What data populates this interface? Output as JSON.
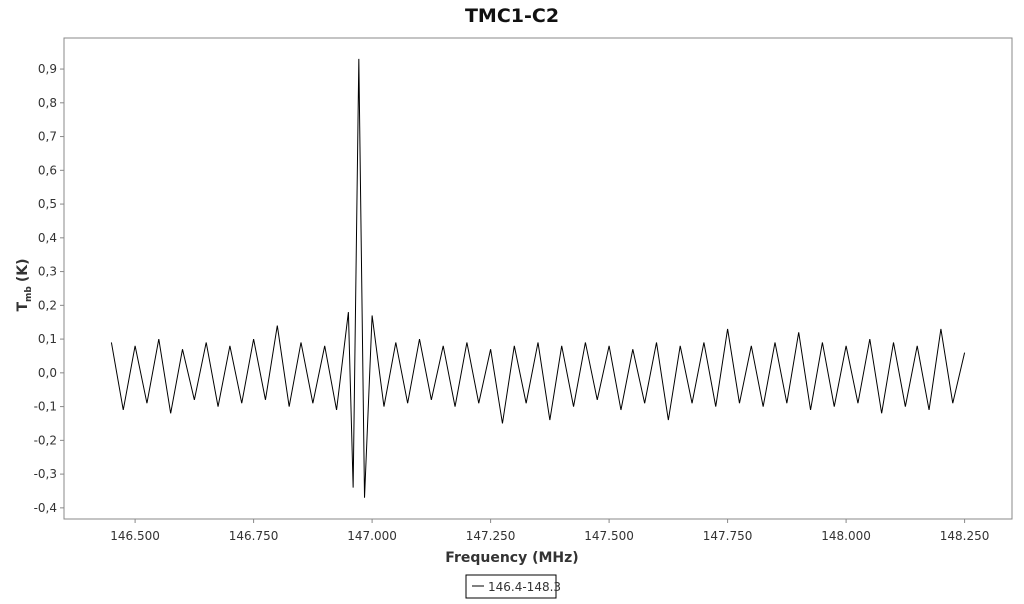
{
  "chart_data": {
    "type": "line",
    "title": "TMC1-C2",
    "xlabel": "Frequency (MHz)",
    "ylabel": {
      "main": "T",
      "sub": "mb",
      "unit": "(K)"
    },
    "xlim": [
      146.35,
      148.35
    ],
    "ylim": [
      -0.433,
      0.992
    ],
    "xticks": [
      {
        "value": 146.5,
        "label": "146.500"
      },
      {
        "value": 146.75,
        "label": "146.750"
      },
      {
        "value": 147.0,
        "label": "147.000"
      },
      {
        "value": 147.25,
        "label": "147.250"
      },
      {
        "value": 147.5,
        "label": "147.500"
      },
      {
        "value": 147.75,
        "label": "147.750"
      },
      {
        "value": 148.0,
        "label": "148.000"
      },
      {
        "value": 148.25,
        "label": "148.250"
      }
    ],
    "yticks": [
      {
        "value": -0.4,
        "label": "-0,4"
      },
      {
        "value": -0.3,
        "label": "-0,3"
      },
      {
        "value": -0.2,
        "label": "-0,2"
      },
      {
        "value": -0.1,
        "label": "-0,1"
      },
      {
        "value": 0,
        "label": "0,0"
      },
      {
        "value": 0.1,
        "label": "0,1"
      },
      {
        "value": 0.2,
        "label": "0,2"
      },
      {
        "value": 0.3,
        "label": "0,3"
      },
      {
        "value": 0.4,
        "label": "0,4"
      },
      {
        "value": 0.5,
        "label": "0,5"
      },
      {
        "value": 0.6,
        "label": "0,6"
      },
      {
        "value": 0.7,
        "label": "0,7"
      },
      {
        "value": 0.8,
        "label": "0,8"
      },
      {
        "value": 0.9,
        "label": "0,9"
      }
    ],
    "x": [
      146.45,
      146.475,
      146.5,
      146.525,
      146.55,
      146.575,
      146.6,
      146.625,
      146.65,
      146.675,
      146.7,
      146.725,
      146.75,
      146.775,
      146.8,
      146.825,
      146.85,
      146.875,
      146.9,
      146.925,
      146.95,
      146.96,
      146.972,
      146.984,
      147.0,
      147.025,
      147.05,
      147.075,
      147.1,
      147.125,
      147.15,
      147.175,
      147.2,
      147.225,
      147.25,
      147.275,
      147.3,
      147.325,
      147.35,
      147.375,
      147.4,
      147.425,
      147.45,
      147.475,
      147.5,
      147.525,
      147.55,
      147.575,
      147.6,
      147.625,
      147.65,
      147.675,
      147.7,
      147.725,
      147.75,
      147.775,
      147.8,
      147.825,
      147.85,
      147.875,
      147.9,
      147.925,
      147.95,
      147.975,
      148.0,
      148.025,
      148.05,
      148.075,
      148.1,
      148.125,
      148.15,
      148.175,
      148.2,
      148.225,
      148.25
    ],
    "series": [
      {
        "name": "146.4-148.3",
        "color": "#000000",
        "values": [
          0.09,
          -0.11,
          0.08,
          -0.09,
          0.1,
          -0.12,
          0.07,
          -0.08,
          0.09,
          -0.1,
          0.08,
          -0.09,
          0.1,
          -0.08,
          0.14,
          -0.1,
          0.09,
          -0.09,
          0.08,
          -0.11,
          0.18,
          -0.34,
          0.93,
          -0.37,
          0.17,
          -0.1,
          0.09,
          -0.09,
          0.1,
          -0.08,
          0.08,
          -0.1,
          0.09,
          -0.09,
          0.07,
          -0.15,
          0.08,
          -0.09,
          0.09,
          -0.14,
          0.08,
          -0.1,
          0.09,
          -0.08,
          0.08,
          -0.11,
          0.07,
          -0.09,
          0.09,
          -0.14,
          0.08,
          -0.09,
          0.09,
          -0.1,
          0.13,
          -0.09,
          0.08,
          -0.1,
          0.09,
          -0.09,
          0.12,
          -0.11,
          0.09,
          -0.1,
          0.08,
          -0.09,
          0.1,
          -0.12,
          0.09,
          -0.1,
          0.08,
          -0.11,
          0.13,
          -0.09,
          0.06
        ]
      }
    ]
  }
}
